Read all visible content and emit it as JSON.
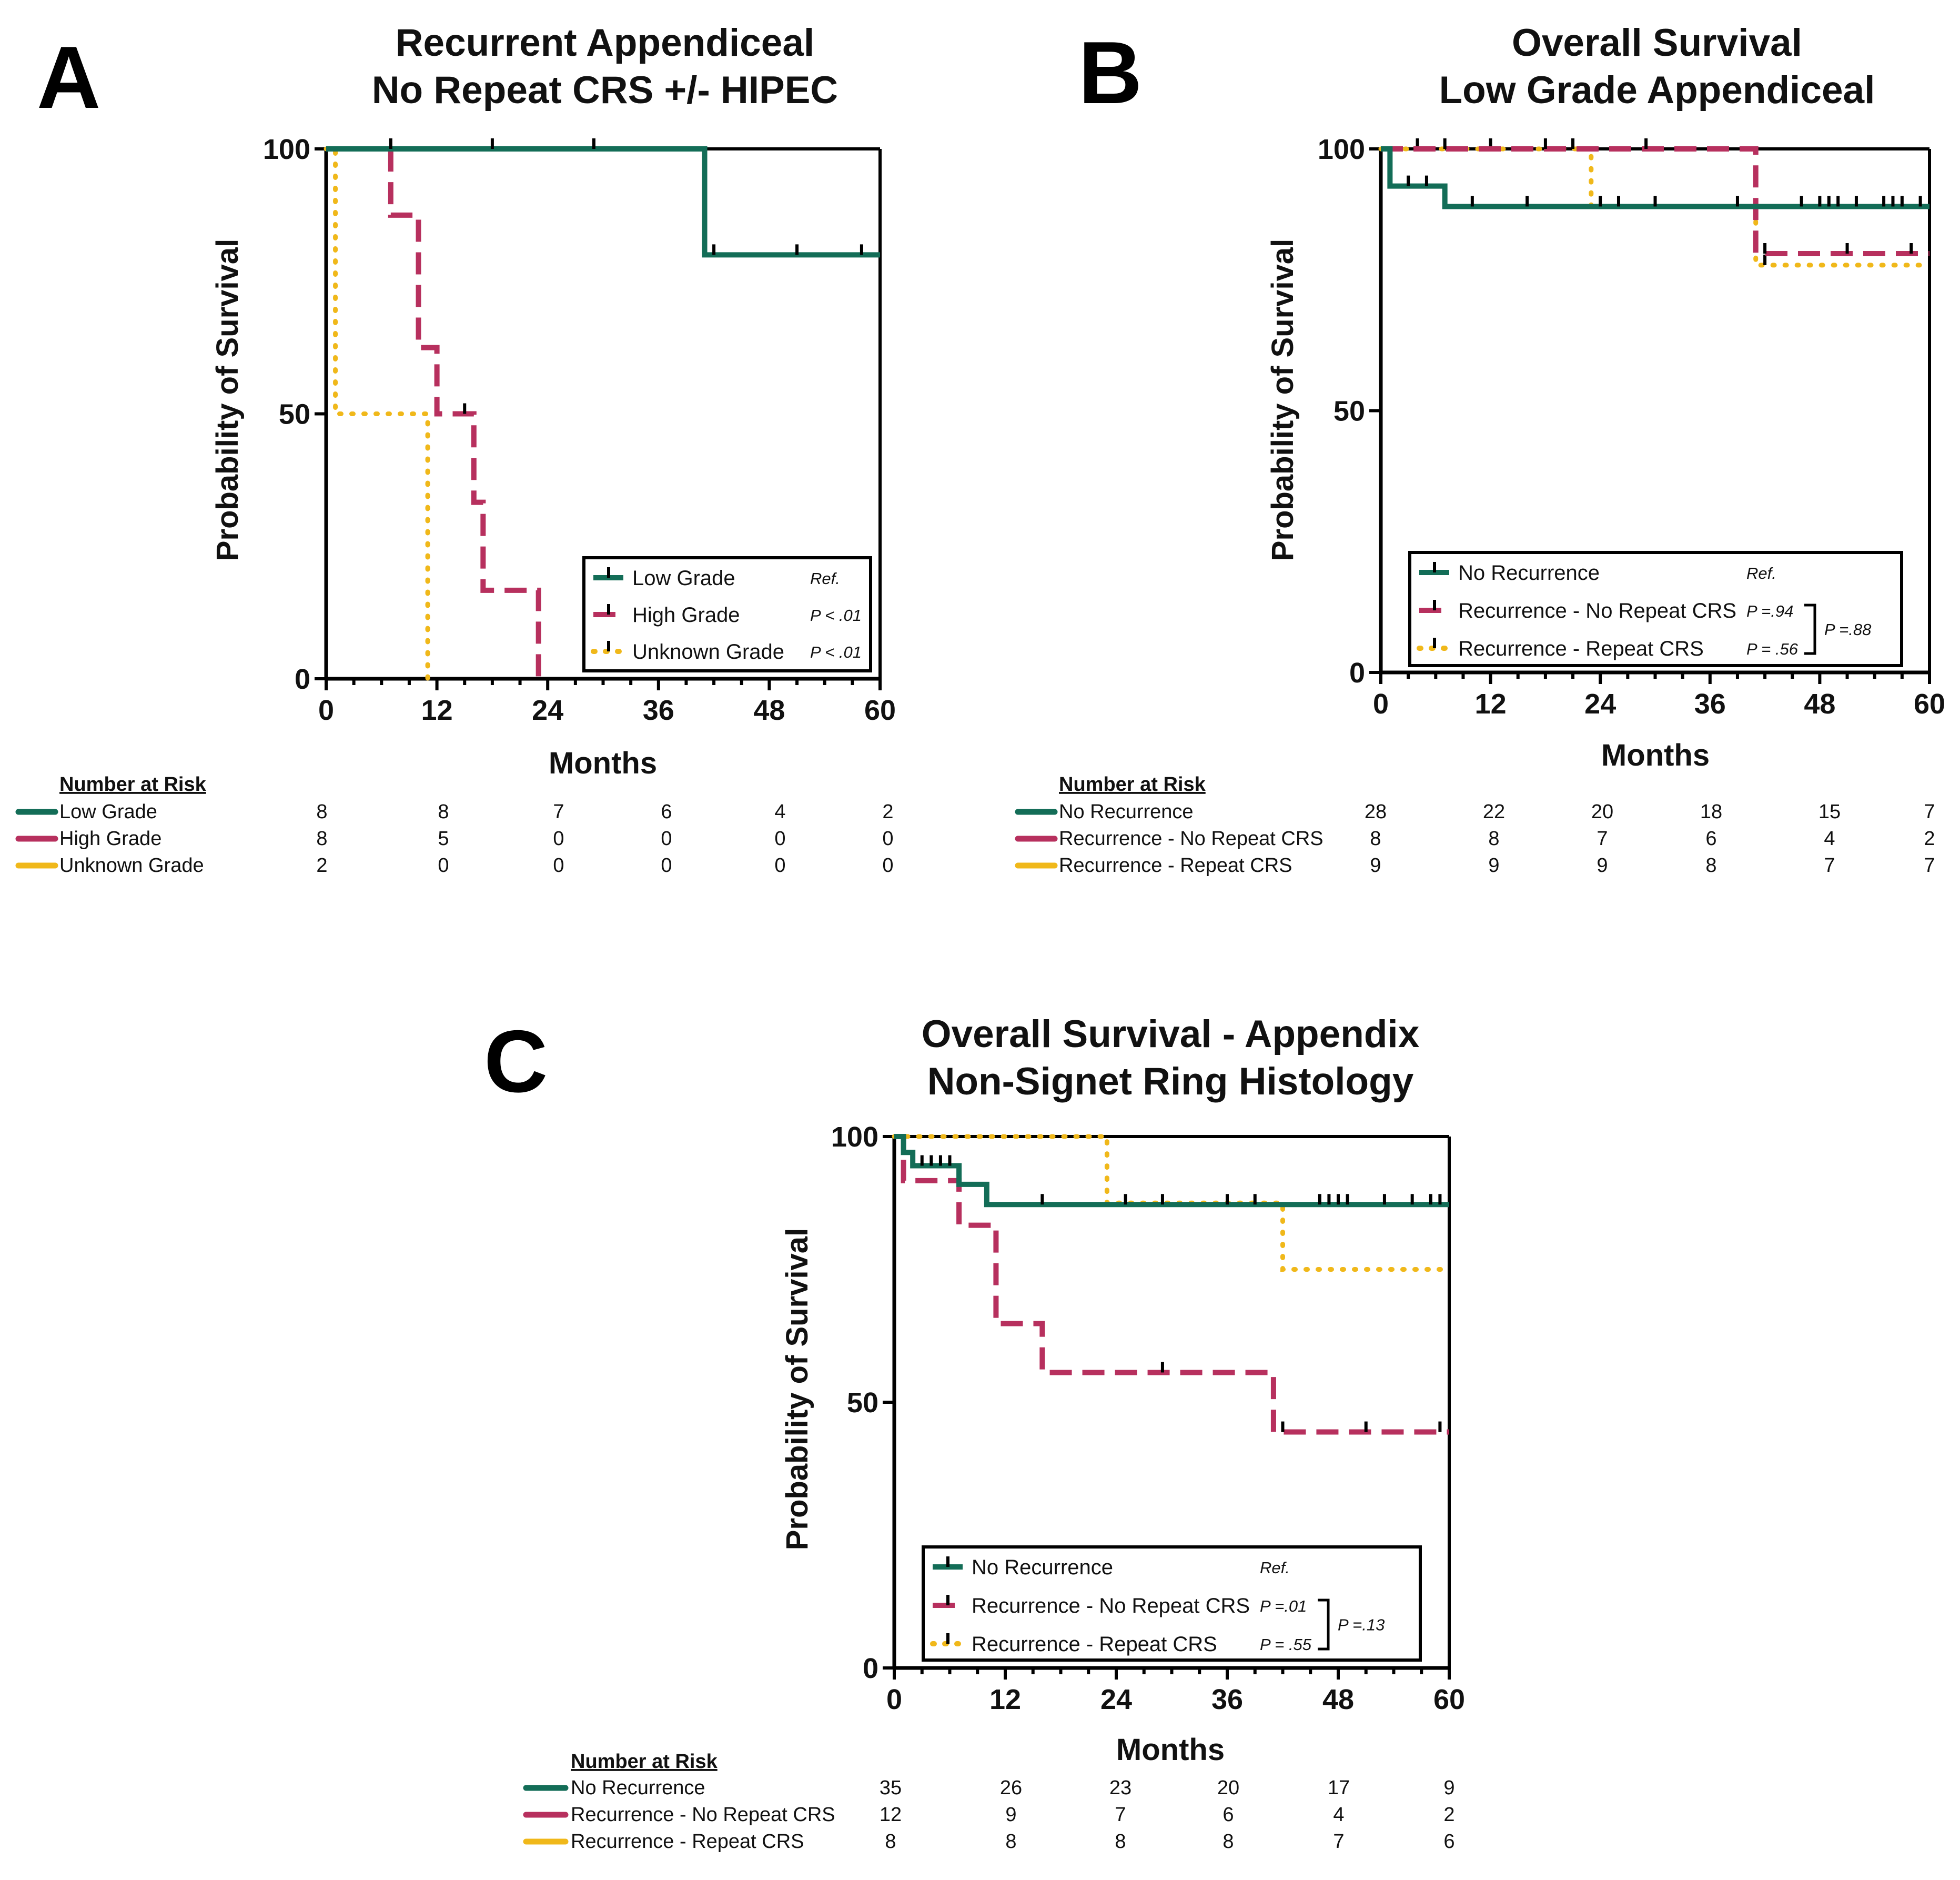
{
  "colors": {
    "green": "#136d57",
    "magenta": "#b7305e",
    "yellow": "#f0b81a"
  },
  "chart_data": [
    {
      "panel": "A",
      "type": "line",
      "subtype": "kaplan-meier",
      "title_lines": [
        "Recurrent Appendiceal",
        "No Repeat CRS +/- HIPEC"
      ],
      "xlabel": "Months",
      "ylabel": "Probability of Survival",
      "xlim": [
        0,
        60
      ],
      "ylim": [
        0,
        100
      ],
      "xticks": [
        0,
        12,
        24,
        36,
        48,
        60
      ],
      "yticks": [
        0,
        50,
        100
      ],
      "legend_position": "bottom-right",
      "series": [
        {
          "name": "Low Grade",
          "color_key": "green",
          "style": "solid",
          "pval": "Ref.",
          "steps": [
            [
              0,
              100
            ],
            [
              41,
              80
            ],
            [
              60,
              80
            ]
          ],
          "censors": [
            [
              7,
              100
            ],
            [
              18,
              100
            ],
            [
              29,
              100
            ],
            [
              42,
              80
            ],
            [
              51,
              80
            ],
            [
              58,
              80
            ]
          ]
        },
        {
          "name": "High Grade",
          "color_key": "magenta",
          "style": "dashed",
          "pval": "P < .01",
          "steps": [
            [
              0,
              100
            ],
            [
              7,
              87.5
            ],
            [
              10,
              62.5
            ],
            [
              12,
              50
            ],
            [
              16,
              33.3
            ],
            [
              17,
              16.7
            ],
            [
              23,
              0
            ],
            [
              23,
              0
            ]
          ],
          "censors": [
            [
              15,
              50
            ]
          ]
        },
        {
          "name": "Unknown Grade",
          "color_key": "yellow",
          "style": "dotted",
          "pval": "P < .01",
          "steps": [
            [
              0,
              100
            ],
            [
              1,
              50
            ],
            [
              11,
              0
            ],
            [
              11,
              0
            ]
          ],
          "censors": []
        }
      ],
      "risk_table": {
        "title": "Number at Risk",
        "rows": [
          {
            "name": "Low Grade",
            "color_key": "green",
            "values": [
              "8",
              "8",
              "7",
              "6",
              "4",
              "2"
            ]
          },
          {
            "name": "High Grade",
            "color_key": "magenta",
            "values": [
              "8",
              "5",
              "0",
              "0",
              "0",
              "0"
            ]
          },
          {
            "name": "Unknown Grade",
            "color_key": "yellow",
            "values": [
              "2",
              "0",
              "0",
              "0",
              "0",
              "0"
            ]
          }
        ]
      }
    },
    {
      "panel": "B",
      "type": "line",
      "subtype": "kaplan-meier",
      "title_lines": [
        "Overall Survival",
        "Low Grade Appendiceal"
      ],
      "xlabel": "Months",
      "ylabel": "Probability of Survival",
      "xlim": [
        0,
        60
      ],
      "ylim": [
        0,
        100
      ],
      "xticks": [
        0,
        12,
        24,
        36,
        48,
        60
      ],
      "yticks": [
        0,
        50,
        100
      ],
      "legend_position": "bottom-right",
      "bracket_pval": "P =.88",
      "series": [
        {
          "name": "No Recurrence",
          "color_key": "green",
          "style": "solid",
          "pval": "Ref.",
          "steps": [
            [
              0,
              100
            ],
            [
              1,
              92.9
            ],
            [
              7,
              89
            ],
            [
              60,
              89
            ]
          ],
          "censors": [
            [
              3,
              92.9
            ],
            [
              5,
              92.9
            ],
            [
              10,
              89
            ],
            [
              16,
              89
            ],
            [
              24,
              89
            ],
            [
              26,
              89
            ],
            [
              30,
              89
            ],
            [
              39,
              89
            ],
            [
              46,
              89
            ],
            [
              48,
              89
            ],
            [
              49,
              89
            ],
            [
              50,
              89
            ],
            [
              52,
              89
            ],
            [
              55,
              89
            ],
            [
              56,
              89
            ],
            [
              57,
              89
            ],
            [
              59,
              89
            ]
          ]
        },
        {
          "name": "Recurrence - No Repeat CRS",
          "color_key": "magenta",
          "style": "dashed",
          "pval": "P =.94",
          "steps": [
            [
              0,
              100
            ],
            [
              41,
              80
            ],
            [
              60,
              80
            ]
          ],
          "censors": [
            [
              7,
              100
            ],
            [
              18,
              100
            ],
            [
              29,
              100
            ],
            [
              42,
              80
            ],
            [
              51,
              80
            ],
            [
              58,
              80
            ]
          ]
        },
        {
          "name": "Recurrence - Repeat CRS",
          "color_key": "yellow",
          "style": "dotted",
          "pval": "P = .56",
          "steps": [
            [
              0,
              100
            ],
            [
              23,
              89
            ],
            [
              41,
              77.8
            ],
            [
              60,
              77.8
            ]
          ],
          "censors": [
            [
              4,
              100
            ],
            [
              12,
              100
            ],
            [
              21,
              100
            ],
            [
              42,
              77.8
            ]
          ]
        }
      ],
      "risk_table": {
        "title": "Number at Risk",
        "rows": [
          {
            "name": "No Recurrence",
            "color_key": "green",
            "values": [
              "28",
              "22",
              "20",
              "18",
              "15",
              "7"
            ]
          },
          {
            "name": "Recurrence - No Repeat CRS",
            "color_key": "magenta",
            "values": [
              "8",
              "8",
              "7",
              "6",
              "4",
              "2"
            ]
          },
          {
            "name": "Recurrence - Repeat CRS",
            "color_key": "yellow",
            "values": [
              "9",
              "9",
              "9",
              "8",
              "7",
              "7"
            ]
          }
        ]
      }
    },
    {
      "panel": "C",
      "type": "line",
      "subtype": "kaplan-meier",
      "title_lines": [
        "Overall Survival - Appendix",
        "Non-Signet Ring Histology"
      ],
      "xlabel": "Months",
      "ylabel": "Probability of Survival",
      "xlim": [
        0,
        60
      ],
      "ylim": [
        0,
        100
      ],
      "xticks": [
        0,
        12,
        24,
        36,
        48,
        60
      ],
      "yticks": [
        0,
        50,
        100
      ],
      "legend_position": "bottom-right",
      "bracket_pval": "P =.13",
      "series": [
        {
          "name": "No Recurrence",
          "color_key": "green",
          "style": "solid",
          "pval": "Ref.",
          "steps": [
            [
              0,
              100
            ],
            [
              1,
              97
            ],
            [
              2,
              94.5
            ],
            [
              7,
              91
            ],
            [
              10,
              87.2
            ],
            [
              60,
              87.2
            ]
          ],
          "censors": [
            [
              3,
              94.5
            ],
            [
              4,
              94.5
            ],
            [
              5,
              94.5
            ],
            [
              6,
              94.5
            ],
            [
              16,
              87.2
            ],
            [
              25,
              87.2
            ],
            [
              29,
              87.2
            ],
            [
              36,
              87.2
            ],
            [
              39,
              87.2
            ],
            [
              46,
              87.2
            ],
            [
              47,
              87.2
            ],
            [
              48,
              87.2
            ],
            [
              49,
              87.2
            ],
            [
              53,
              87.2
            ],
            [
              56,
              87.2
            ],
            [
              58,
              87.2
            ],
            [
              59,
              87.2
            ]
          ]
        },
        {
          "name": "Recurrence - No Repeat CRS",
          "color_key": "magenta",
          "style": "dashed",
          "pval": "P =.01",
          "steps": [
            [
              0,
              100
            ],
            [
              1,
              91.7
            ],
            [
              7,
              83.3
            ],
            [
              11,
              64.8
            ],
            [
              16,
              55.6
            ],
            [
              41,
              44.4
            ],
            [
              60,
              44.4
            ]
          ],
          "censors": [
            [
              29,
              55.6
            ],
            [
              42,
              44.4
            ],
            [
              51,
              44.4
            ],
            [
              59,
              44.4
            ]
          ]
        },
        {
          "name": "Recurrence - Repeat CRS",
          "color_key": "yellow",
          "style": "dotted",
          "pval": "P = .55",
          "steps": [
            [
              0,
              100
            ],
            [
              23,
              87.5
            ],
            [
              42,
              75
            ],
            [
              60,
              75
            ]
          ],
          "censors": [
            [
              60,
              75
            ]
          ]
        }
      ],
      "risk_table": {
        "title": "Number at Risk",
        "rows": [
          {
            "name": "No Recurrence",
            "color_key": "green",
            "values": [
              "35",
              "26",
              "23",
              "20",
              "17",
              "9"
            ]
          },
          {
            "name": "Recurrence - No Repeat CRS",
            "color_key": "magenta",
            "values": [
              "12",
              "9",
              "7",
              "6",
              "4",
              "2"
            ]
          },
          {
            "name": "Recurrence - Repeat CRS",
            "color_key": "yellow",
            "values": [
              "8",
              "8",
              "8",
              "8",
              "7",
              "6"
            ]
          }
        ]
      }
    }
  ]
}
